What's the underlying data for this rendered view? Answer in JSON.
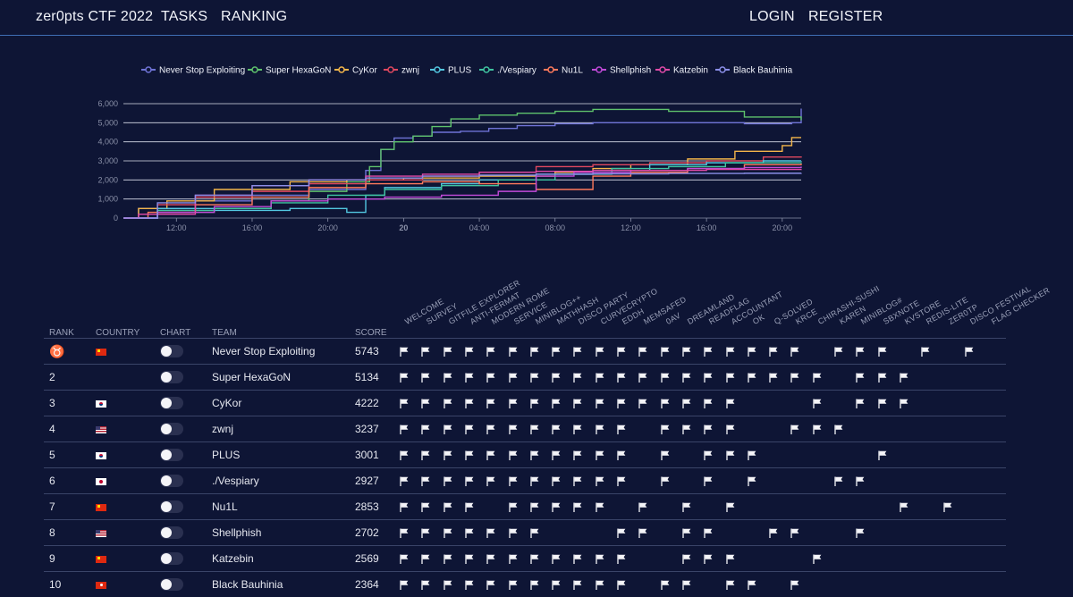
{
  "nav": {
    "brand": "zer0pts CTF 2022",
    "tasks": "TASKS",
    "ranking": "RANKING",
    "login": "LOGIN",
    "register": "REGISTER"
  },
  "chart_data": {
    "type": "line",
    "title": "",
    "xlabel": "",
    "ylabel": "",
    "ylim": [
      0,
      6000
    ],
    "yticks": [
      0,
      1000,
      2000,
      3000,
      4000,
      5000,
      6000
    ],
    "ytick_labels": [
      "0",
      "1,000",
      "2,000",
      "3,000",
      "4,000",
      "5,000",
      "6,000"
    ],
    "xlim": [
      9.2,
      45.0
    ],
    "xticks": [
      12,
      16,
      20,
      24,
      28,
      32,
      36,
      40,
      44
    ],
    "xtick_labels": [
      "12:00",
      "16:00",
      "20:00",
      "20",
      "04:00",
      "08:00",
      "12:00",
      "16:00",
      "20:00"
    ],
    "legend_position": "top",
    "series": [
      {
        "name": "Never Stop Exploiting",
        "color": "#6f73d6",
        "points": [
          [
            9.2,
            0
          ],
          [
            10,
            500
          ],
          [
            13,
            900
          ],
          [
            16,
            1200
          ],
          [
            19,
            1500
          ],
          [
            22,
            2500
          ],
          [
            22.8,
            3600
          ],
          [
            23.5,
            4200
          ],
          [
            24.5,
            4300
          ],
          [
            25.5,
            4500
          ],
          [
            27,
            4550
          ],
          [
            28.5,
            4700
          ],
          [
            30,
            4850
          ],
          [
            32,
            4950
          ],
          [
            34,
            5000
          ],
          [
            38,
            5000
          ],
          [
            42,
            4950
          ],
          [
            44.5,
            5000
          ],
          [
            45,
            5743
          ]
        ]
      },
      {
        "name": "Super HexaGoN",
        "color": "#5ec26c",
        "points": [
          [
            9.2,
            0
          ],
          [
            11,
            300
          ],
          [
            14,
            500
          ],
          [
            17,
            900
          ],
          [
            19,
            1400
          ],
          [
            21,
            1900
          ],
          [
            22.2,
            2700
          ],
          [
            22.8,
            3600
          ],
          [
            23.5,
            4000
          ],
          [
            24.5,
            4300
          ],
          [
            25.5,
            4800
          ],
          [
            26.5,
            5200
          ],
          [
            28,
            5400
          ],
          [
            30,
            5500
          ],
          [
            32,
            5600
          ],
          [
            34,
            5700
          ],
          [
            38,
            5600
          ],
          [
            42,
            5300
          ],
          [
            45,
            5134
          ]
        ]
      },
      {
        "name": "CyKor",
        "color": "#f3b54a",
        "points": [
          [
            9.2,
            0
          ],
          [
            10,
            500
          ],
          [
            11.5,
            900
          ],
          [
            14,
            1500
          ],
          [
            18,
            1900
          ],
          [
            21,
            2000
          ],
          [
            24,
            2100
          ],
          [
            28,
            2200
          ],
          [
            32,
            2400
          ],
          [
            34,
            2600
          ],
          [
            36,
            2800
          ],
          [
            39,
            3100
          ],
          [
            41.5,
            3500
          ],
          [
            44,
            3800
          ],
          [
            44.5,
            4222
          ],
          [
            45,
            4222
          ]
        ]
      },
      {
        "name": "zwnj",
        "color": "#e0485f",
        "points": [
          [
            9.2,
            0
          ],
          [
            11,
            700
          ],
          [
            13,
            1100
          ],
          [
            16,
            1400
          ],
          [
            19,
            1800
          ],
          [
            22,
            2000
          ],
          [
            25,
            2200
          ],
          [
            28,
            2400
          ],
          [
            31,
            2700
          ],
          [
            34,
            2800
          ],
          [
            37,
            2900
          ],
          [
            40,
            3000
          ],
          [
            43,
            3200
          ],
          [
            45,
            3237
          ]
        ]
      },
      {
        "name": "PLUS",
        "color": "#52c7e0",
        "points": [
          [
            9.2,
            0
          ],
          [
            11,
            500
          ],
          [
            14,
            400
          ],
          [
            18,
            500
          ],
          [
            21,
            300
          ],
          [
            22,
            1200
          ],
          [
            23,
            1600
          ],
          [
            26,
            1800
          ],
          [
            28,
            2000
          ],
          [
            31,
            2300
          ],
          [
            34,
            2500
          ],
          [
            37,
            2800
          ],
          [
            40,
            2900
          ],
          [
            43,
            3000
          ],
          [
            45,
            3001
          ]
        ]
      },
      {
        "name": "./Vespiary",
        "color": "#3fc4a0",
        "points": [
          [
            9.2,
            0
          ],
          [
            11,
            400
          ],
          [
            14,
            500
          ],
          [
            17,
            800
          ],
          [
            20,
            1200
          ],
          [
            23,
            1500
          ],
          [
            26,
            1700
          ],
          [
            29,
            2000
          ],
          [
            32,
            2300
          ],
          [
            35,
            2600
          ],
          [
            38,
            2700
          ],
          [
            41,
            2900
          ],
          [
            45,
            2927
          ]
        ]
      },
      {
        "name": "Nu1L",
        "color": "#ff7a5c",
        "points": [
          [
            9.2,
            0
          ],
          [
            10.5,
            300
          ],
          [
            13,
            700
          ],
          [
            16,
            1100
          ],
          [
            19,
            1600
          ],
          [
            22,
            1800
          ],
          [
            25,
            1900
          ],
          [
            28,
            1800
          ],
          [
            31,
            1500
          ],
          [
            34,
            2200
          ],
          [
            36,
            2400
          ],
          [
            39,
            2600
          ],
          [
            42,
            2800
          ],
          [
            45,
            2853
          ]
        ]
      },
      {
        "name": "Shellphish",
        "color": "#c14ad8",
        "points": [
          [
            9.2,
            0
          ],
          [
            11,
            300
          ],
          [
            14,
            600
          ],
          [
            17,
            900
          ],
          [
            20,
            1000
          ],
          [
            23,
            1100
          ],
          [
            26,
            1200
          ],
          [
            29,
            1400
          ],
          [
            31,
            2200
          ],
          [
            33,
            2400
          ],
          [
            36,
            2500
          ],
          [
            39,
            2600
          ],
          [
            42,
            2650
          ],
          [
            45,
            2702
          ]
        ]
      },
      {
        "name": "Katzebin",
        "color": "#e04aa8",
        "points": [
          [
            9.2,
            0
          ],
          [
            10,
            200
          ],
          [
            13,
            1200
          ],
          [
            16,
            1700
          ],
          [
            19,
            2000
          ],
          [
            22,
            2200
          ],
          [
            25,
            2300
          ],
          [
            28,
            2400
          ],
          [
            31,
            2450
          ],
          [
            34,
            2500
          ],
          [
            37,
            2500
          ],
          [
            40,
            2550
          ],
          [
            45,
            2569
          ]
        ]
      },
      {
        "name": "Black Bauhinia",
        "color": "#8a8ee8",
        "points": [
          [
            9.2,
            0
          ],
          [
            11,
            800
          ],
          [
            13,
            1200
          ],
          [
            16,
            1700
          ],
          [
            19,
            2000
          ],
          [
            22,
            2100
          ],
          [
            25,
            2200
          ],
          [
            28,
            2250
          ],
          [
            31,
            2300
          ],
          [
            34,
            2320
          ],
          [
            38,
            2340
          ],
          [
            42,
            2350
          ],
          [
            45,
            2364
          ]
        ]
      }
    ]
  },
  "table": {
    "headers": {
      "rank": "RANK",
      "country": "COUNTRY",
      "chart": "CHART",
      "team": "TEAM",
      "score": "SCORE"
    },
    "challenges": [
      "WELCOME",
      "SURVEY",
      "GITFILE EXPLORER",
      "ANTI-FERMAT",
      "MODERN ROME",
      "SERVICE",
      "MINIBLOG++",
      "MATHHASH",
      "DISCO PARTY",
      "CURVECRYPTO",
      "EDDH",
      "MEMSAFED",
      "0AV",
      "DREAMLAND",
      "READFLAG",
      "ACCOUNTANT",
      "OK",
      "Q-SOLVED",
      "KRCE",
      "CHIRASHI-SUSHI",
      "KAREN",
      "MINIBLOG#",
      "SBXNOTE",
      "KVSTORE",
      "REDIS-LITE",
      "ZER0TP",
      "DISCO FESTIVAL",
      "FLAG CHECKER"
    ],
    "rows": [
      {
        "rank": "♉",
        "country": "cn",
        "team": "Never Stop Exploiting",
        "score": "5743",
        "solved": [
          1,
          1,
          1,
          1,
          1,
          1,
          1,
          1,
          1,
          1,
          1,
          1,
          1,
          1,
          1,
          1,
          1,
          1,
          1,
          0,
          1,
          1,
          1,
          0,
          1,
          0,
          1,
          0
        ]
      },
      {
        "rank": "2",
        "country": "",
        "team": "Super HexaGoN",
        "score": "5134",
        "solved": [
          1,
          1,
          1,
          1,
          1,
          1,
          1,
          1,
          1,
          1,
          1,
          1,
          1,
          1,
          1,
          1,
          1,
          1,
          1,
          1,
          0,
          1,
          1,
          1,
          0,
          0,
          0,
          0
        ]
      },
      {
        "rank": "3",
        "country": "kr",
        "team": "CyKor",
        "score": "4222",
        "solved": [
          1,
          1,
          1,
          1,
          1,
          1,
          1,
          1,
          1,
          1,
          1,
          1,
          1,
          1,
          1,
          1,
          0,
          0,
          0,
          1,
          0,
          1,
          1,
          1,
          0,
          0,
          0,
          0
        ]
      },
      {
        "rank": "4",
        "country": "us",
        "team": "zwnj",
        "score": "3237",
        "solved": [
          1,
          1,
          1,
          1,
          1,
          1,
          1,
          1,
          1,
          1,
          1,
          0,
          1,
          1,
          1,
          1,
          0,
          0,
          1,
          1,
          1,
          0,
          0,
          0,
          0,
          0,
          0,
          0
        ]
      },
      {
        "rank": "5",
        "country": "kr",
        "team": "PLUS",
        "score": "3001",
        "solved": [
          1,
          1,
          1,
          1,
          1,
          1,
          1,
          1,
          1,
          1,
          1,
          0,
          1,
          0,
          1,
          1,
          1,
          0,
          0,
          0,
          0,
          0,
          1,
          0,
          0,
          0,
          0,
          0
        ]
      },
      {
        "rank": "6",
        "country": "jp",
        "team": "./Vespiary",
        "score": "2927",
        "solved": [
          1,
          1,
          1,
          1,
          1,
          1,
          1,
          1,
          1,
          1,
          1,
          0,
          1,
          0,
          1,
          0,
          1,
          0,
          0,
          0,
          1,
          1,
          0,
          0,
          0,
          0,
          0,
          0
        ]
      },
      {
        "rank": "7",
        "country": "cn",
        "team": "Nu1L",
        "score": "2853",
        "solved": [
          1,
          1,
          1,
          1,
          0,
          1,
          1,
          1,
          1,
          1,
          0,
          1,
          0,
          1,
          0,
          1,
          0,
          0,
          0,
          0,
          0,
          0,
          0,
          1,
          0,
          1,
          0,
          0
        ]
      },
      {
        "rank": "8",
        "country": "us",
        "team": "Shellphish",
        "score": "2702",
        "solved": [
          1,
          1,
          1,
          1,
          1,
          1,
          1,
          0,
          0,
          0,
          1,
          1,
          0,
          1,
          1,
          0,
          0,
          1,
          1,
          0,
          0,
          1,
          0,
          0,
          0,
          0,
          0,
          0
        ]
      },
      {
        "rank": "9",
        "country": "cn",
        "team": "Katzebin",
        "score": "2569",
        "solved": [
          1,
          1,
          1,
          1,
          1,
          1,
          1,
          1,
          1,
          1,
          1,
          0,
          0,
          1,
          1,
          1,
          0,
          0,
          0,
          1,
          0,
          0,
          0,
          0,
          0,
          0,
          0,
          0
        ]
      },
      {
        "rank": "10",
        "country": "hk",
        "team": "Black Bauhinia",
        "score": "2364",
        "solved": [
          1,
          1,
          1,
          1,
          1,
          1,
          1,
          1,
          1,
          1,
          1,
          0,
          1,
          1,
          0,
          1,
          1,
          0,
          1,
          0,
          0,
          0,
          0,
          0,
          0,
          0,
          0,
          0
        ]
      }
    ]
  }
}
